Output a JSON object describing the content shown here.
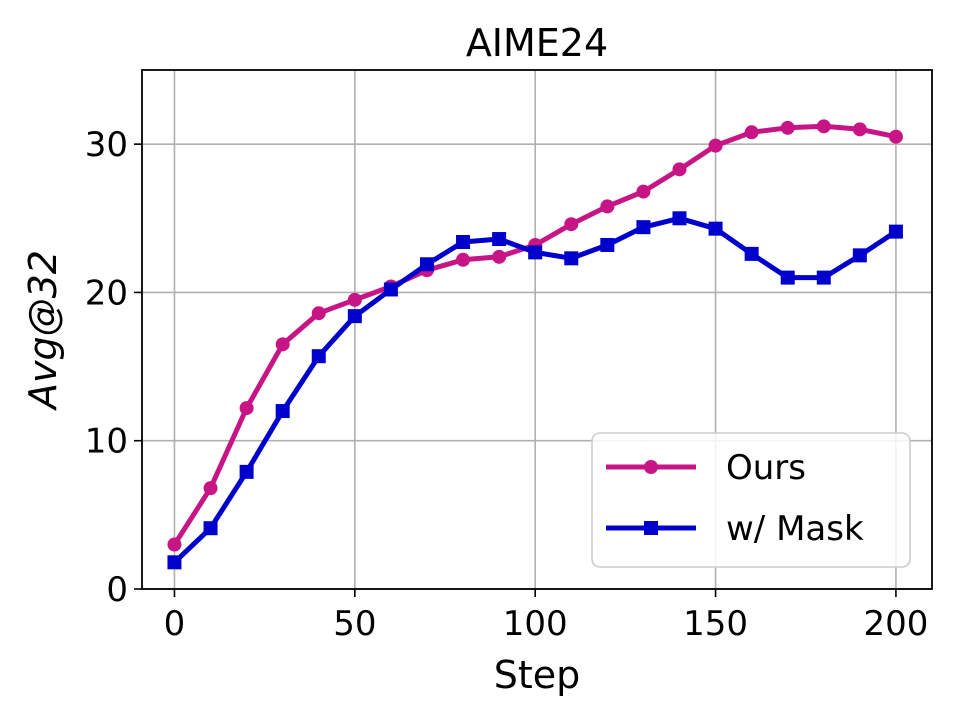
{
  "chart_data": {
    "type": "line",
    "title": "AIME24",
    "xlabel": "Step",
    "ylabel": "Avg@32",
    "xlim": [
      -9,
      210
    ],
    "ylim": [
      0,
      35
    ],
    "xticks": [
      0,
      50,
      100,
      150,
      200
    ],
    "yticks": [
      0,
      10,
      20,
      30
    ],
    "grid": true,
    "legend_position": "lower-right",
    "x": [
      0,
      10,
      20,
      30,
      40,
      50,
      60,
      70,
      80,
      90,
      100,
      110,
      120,
      130,
      140,
      150,
      160,
      170,
      180,
      190,
      200
    ],
    "series": [
      {
        "name": "Ours",
        "color": "#c71585",
        "marker": "circle",
        "values": [
          3.0,
          6.8,
          12.2,
          16.5,
          18.6,
          19.5,
          20.4,
          21.5,
          22.2,
          22.4,
          23.2,
          24.6,
          25.8,
          26.8,
          28.3,
          29.9,
          30.8,
          31.1,
          31.2,
          31.0,
          30.5
        ]
      },
      {
        "name": "w/ Mask",
        "color": "#0000cd",
        "marker": "square",
        "values": [
          1.8,
          4.1,
          7.9,
          12.0,
          15.7,
          18.4,
          20.2,
          21.9,
          23.4,
          23.6,
          22.7,
          22.3,
          23.2,
          24.4,
          25.0,
          24.3,
          22.6,
          21.0,
          21.0,
          22.5,
          24.1
        ]
      }
    ]
  }
}
